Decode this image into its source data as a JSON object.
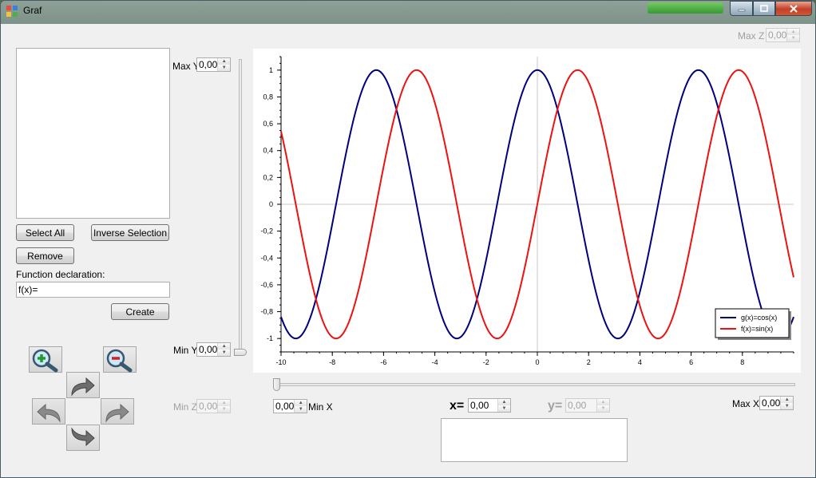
{
  "window": {
    "title": "Graf"
  },
  "max_z": {
    "label": "Max Z",
    "value": "0,00"
  },
  "max_y": {
    "label": "Max Y",
    "value": "0,00"
  },
  "min_y": {
    "label": "Min Y",
    "value": "0,00"
  },
  "min_z": {
    "label": "Min Z",
    "value": "0,00"
  },
  "min_x": {
    "label": "Min X",
    "value": "0,00"
  },
  "max_x": {
    "label": "Max X",
    "value": "0,00"
  },
  "x_coord": {
    "label": "x=",
    "value": "0,00"
  },
  "y_coord": {
    "label": "y=",
    "value": "0,00"
  },
  "buttons": {
    "select_all": "Select All",
    "inverse_selection": "Inverse Selection",
    "remove": "Remove",
    "create": "Create"
  },
  "function_declaration": {
    "label": "Function declaration:",
    "value": "f(x)="
  },
  "nav_icons": [
    "zoom-in-icon",
    "zoom-out-icon",
    "rotate-up-icon",
    "rotate-left-icon",
    "rotate-right-icon",
    "rotate-down-icon"
  ],
  "chart_data": {
    "type": "line",
    "xlim": [
      -10,
      10
    ],
    "ylim": [
      -1.1,
      1.1
    ],
    "xticks": [
      "-10",
      "-8",
      "-6",
      "-4",
      "-2",
      "0",
      "2",
      "4",
      "6",
      "8"
    ],
    "yticks": [
      "1",
      "0,8",
      "0,6",
      "0,4",
      "0,2",
      "0",
      "-0,2",
      "-0,4",
      "-0,6",
      "-0,8",
      "-1"
    ],
    "legend_position": "bottom-right",
    "series": [
      {
        "name": "g(x)=cos(x)",
        "function": "cos",
        "color": "#00007f"
      },
      {
        "name": "f(x)=sin(x)",
        "function": "sin",
        "color": "#ee1111"
      }
    ]
  }
}
